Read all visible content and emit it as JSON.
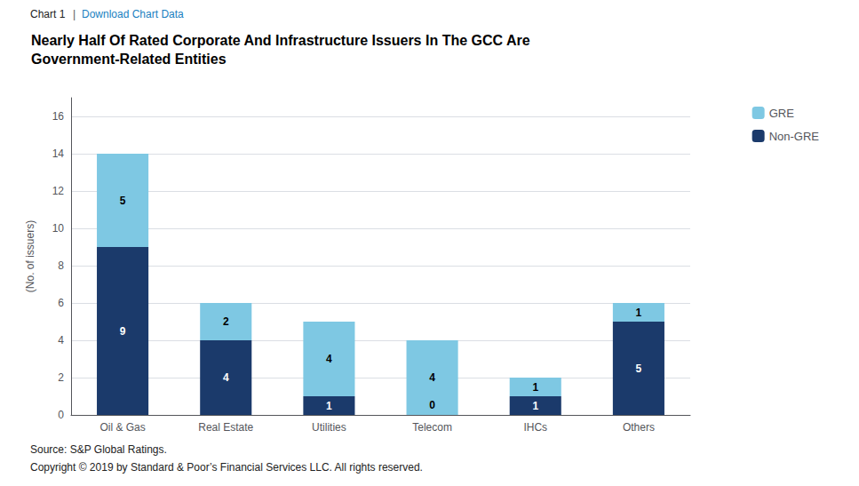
{
  "chart_data": {
    "type": "bar",
    "stacked": true,
    "title": "Nearly Half Of Rated Corporate And Infrastructure Issuers In The GCC Are\nGovernment-Related Entities",
    "annotations": [
      "Chart 1",
      "|",
      "Download Chart Data",
      "Source: S&P Global Ratings.",
      "Copyright © 2019 by Standard & Poor’s Financial Services LLC. All rights reserved."
    ],
    "ylabel": "(No. of issuers)",
    "categories": [
      "Oil & Gas",
      "Real Estate",
      "Utilities",
      "Telecom",
      "IHCs",
      "Others"
    ],
    "series": [
      {
        "name": "Non-GRE",
        "color": "#1b3a6b",
        "values": [
          9,
          4,
          1,
          0,
          1,
          5
        ]
      },
      {
        "name": "GRE",
        "color": "#7ec8e3",
        "values": [
          5,
          2,
          4,
          4,
          1,
          1
        ]
      }
    ],
    "ylim": [
      0,
      17
    ],
    "yticks": [
      0,
      2,
      4,
      6,
      8,
      10,
      12,
      14,
      16
    ],
    "grid": true,
    "legend": "right",
    "data_labels": true
  }
}
